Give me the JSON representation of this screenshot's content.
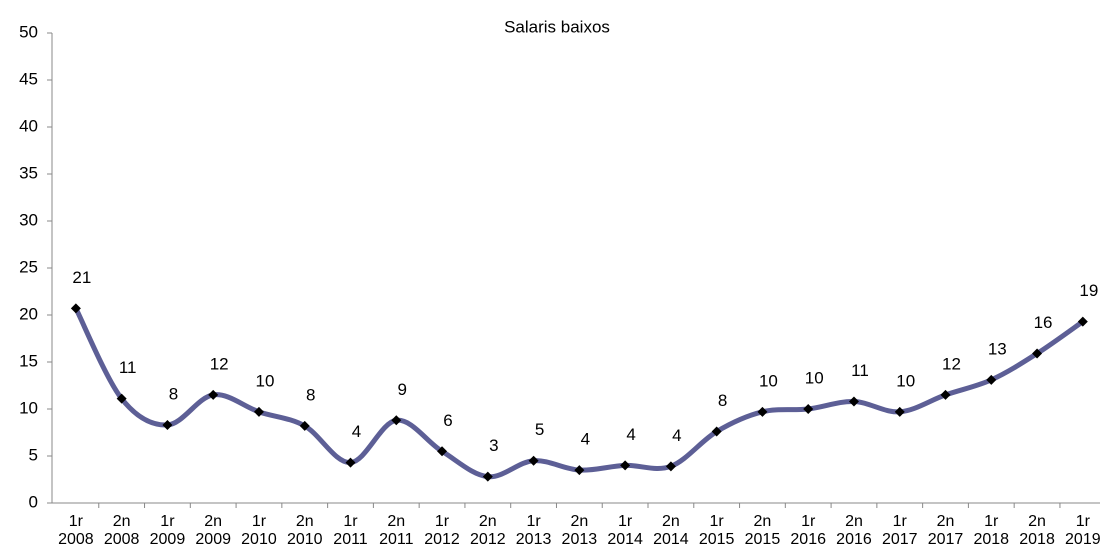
{
  "chart_data": {
    "type": "line",
    "title": "Salaris baixos",
    "categories": [
      "1r\n2008",
      "2n\n2008",
      "1r\n2009",
      "2n\n2009",
      "1r\n2010",
      "2n\n2010",
      "1r\n2011",
      "2n\n2011",
      "1r\n2012",
      "2n\n2012",
      "1r\n2013",
      "2n\n2013",
      "1r\n2014",
      "2n\n2014",
      "1r\n2015",
      "2n\n2015",
      "1r\n2016",
      "2n\n2016",
      "1r\n2017",
      "2n\n2017",
      "1r\n2018",
      "2n\n2018",
      "1r\n2019"
    ],
    "series": [
      {
        "color": "#5d5f96",
        "values": [
          20.7,
          11.1,
          8.3,
          11.5,
          9.7,
          8.2,
          4.3,
          8.8,
          5.5,
          2.8,
          4.5,
          3.5,
          4.0,
          3.9,
          7.6,
          9.7,
          10.0,
          10.8,
          9.7,
          11.5,
          13.1,
          15.9,
          19.3
        ],
        "value_labels": [
          "21",
          "11",
          "8",
          "12",
          "10",
          "8",
          "4",
          "9",
          "6",
          "3",
          "5",
          "4",
          "4",
          "4",
          "8",
          "10",
          "10",
          "11",
          "10",
          "12",
          "13",
          "16",
          "19"
        ]
      }
    ],
    "ylim": [
      0,
      50
    ],
    "yticks": [
      0,
      5,
      10,
      15,
      20,
      25,
      30,
      35,
      40,
      45,
      50
    ]
  }
}
